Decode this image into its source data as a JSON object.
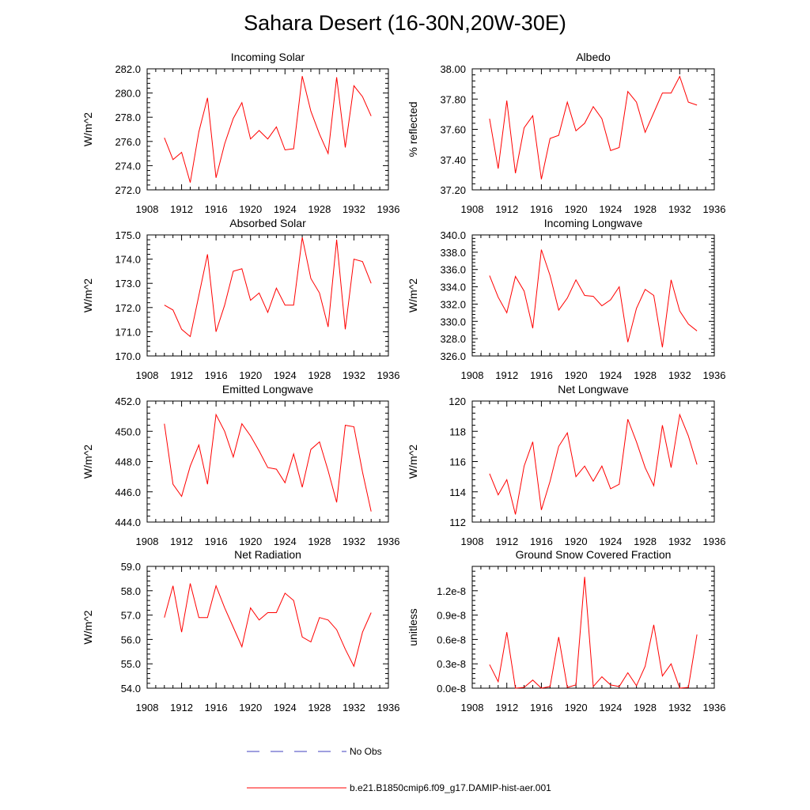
{
  "title": "Sahara Desert (16-30N,20W-30E)",
  "legend": [
    {
      "label": "No Obs",
      "color": "#3f3fbf",
      "style": "dashed"
    },
    {
      "label": "b.e21.B1850cmip6.f09_g17.DAMIP-hist-aer.001",
      "color": "#ff0000",
      "style": "solid"
    }
  ],
  "chart_data": [
    {
      "type": "line",
      "title": "Incoming Solar",
      "ylabel": "W/m^2",
      "xlim": [
        1908,
        1936
      ],
      "xticks": [
        1908,
        1912,
        1916,
        1920,
        1924,
        1928,
        1932,
        1936
      ],
      "ylim": [
        272,
        282
      ],
      "yticks": [
        "272.0",
        "274.0",
        "276.0",
        "278.0",
        "280.0",
        "282.0"
      ],
      "series": [
        {
          "color": "#ff0000",
          "x": [
            1910,
            1911,
            1912,
            1913,
            1914,
            1915,
            1916,
            1917,
            1918,
            1919,
            1920,
            1921,
            1922,
            1923,
            1924,
            1925,
            1926,
            1927,
            1928,
            1929,
            1930,
            1931,
            1932,
            1933,
            1934
          ],
          "values": [
            276.3,
            274.5,
            275.1,
            272.6,
            276.8,
            279.6,
            273.0,
            275.8,
            277.9,
            279.2,
            276.2,
            276.9,
            276.2,
            277.2,
            275.3,
            275.4,
            281.4,
            278.5,
            276.6,
            275.0,
            281.3,
            275.5,
            280.6,
            279.7,
            278.1
          ]
        }
      ]
    },
    {
      "type": "line",
      "title": "Albedo",
      "ylabel": "% reflected",
      "xlim": [
        1908,
        1936
      ],
      "xticks": [
        1908,
        1912,
        1916,
        1920,
        1924,
        1928,
        1932,
        1936
      ],
      "ylim": [
        37.2,
        38.0
      ],
      "yticks": [
        "37.20",
        "37.40",
        "37.60",
        "37.80",
        "38.00"
      ],
      "series": [
        {
          "color": "#ff0000",
          "x": [
            1910,
            1911,
            1912,
            1913,
            1914,
            1915,
            1916,
            1917,
            1918,
            1919,
            1920,
            1921,
            1922,
            1923,
            1924,
            1925,
            1926,
            1927,
            1928,
            1929,
            1930,
            1931,
            1932,
            1933,
            1934
          ],
          "values": [
            37.67,
            37.34,
            37.79,
            37.31,
            37.61,
            37.69,
            37.27,
            37.54,
            37.56,
            37.78,
            37.59,
            37.64,
            37.75,
            37.67,
            37.46,
            37.48,
            37.85,
            37.78,
            37.58,
            37.71,
            37.84,
            37.84,
            37.95,
            37.78,
            37.76
          ]
        }
      ]
    },
    {
      "type": "line",
      "title": "Absorbed Solar",
      "ylabel": "W/m^2",
      "xlim": [
        1908,
        1936
      ],
      "xticks": [
        1908,
        1912,
        1916,
        1920,
        1924,
        1928,
        1932,
        1936
      ],
      "ylim": [
        170,
        175
      ],
      "yticks": [
        "170.0",
        "171.0",
        "172.0",
        "173.0",
        "174.0",
        "175.0"
      ],
      "series": [
        {
          "color": "#ff0000",
          "x": [
            1910,
            1911,
            1912,
            1913,
            1914,
            1915,
            1916,
            1917,
            1918,
            1919,
            1920,
            1921,
            1922,
            1923,
            1924,
            1925,
            1926,
            1927,
            1928,
            1929,
            1930,
            1931,
            1932,
            1933,
            1934
          ],
          "values": [
            172.1,
            171.9,
            171.1,
            170.8,
            172.5,
            174.2,
            171.0,
            172.1,
            173.5,
            173.6,
            172.3,
            172.6,
            171.8,
            172.8,
            172.1,
            172.1,
            174.9,
            173.2,
            172.6,
            171.2,
            174.8,
            171.1,
            174.0,
            173.9,
            173.0
          ]
        }
      ]
    },
    {
      "type": "line",
      "title": "Incoming Longwave",
      "ylabel": "W/m^2",
      "xlim": [
        1908,
        1936
      ],
      "xticks": [
        1908,
        1912,
        1916,
        1920,
        1924,
        1928,
        1932,
        1936
      ],
      "ylim": [
        326,
        340
      ],
      "yticks": [
        "326.0",
        "328.0",
        "330.0",
        "332.0",
        "334.0",
        "336.0",
        "338.0",
        "340.0"
      ],
      "series": [
        {
          "color": "#ff0000",
          "x": [
            1910,
            1911,
            1912,
            1913,
            1914,
            1915,
            1916,
            1917,
            1918,
            1919,
            1920,
            1921,
            1922,
            1923,
            1924,
            1925,
            1926,
            1927,
            1928,
            1929,
            1930,
            1931,
            1932,
            1933,
            1934
          ],
          "values": [
            335.3,
            332.8,
            331.0,
            335.2,
            333.5,
            329.2,
            338.3,
            335.3,
            331.3,
            332.7,
            334.8,
            333.0,
            332.9,
            331.8,
            332.5,
            334.0,
            327.6,
            331.5,
            333.7,
            333.0,
            327.0,
            334.8,
            331.2,
            329.7,
            328.9
          ]
        }
      ]
    },
    {
      "type": "line",
      "title": "Emitted Longwave",
      "ylabel": "W/m^2",
      "xlim": [
        1908,
        1936
      ],
      "xticks": [
        1908,
        1912,
        1916,
        1920,
        1924,
        1928,
        1932,
        1936
      ],
      "ylim": [
        444,
        452
      ],
      "yticks": [
        "444.0",
        "446.0",
        "448.0",
        "450.0",
        "452.0"
      ],
      "series": [
        {
          "color": "#ff0000",
          "x": [
            1910,
            1911,
            1912,
            1913,
            1914,
            1915,
            1916,
            1917,
            1918,
            1919,
            1920,
            1921,
            1922,
            1923,
            1924,
            1925,
            1926,
            1927,
            1928,
            1929,
            1930,
            1931,
            1932,
            1933,
            1934
          ],
          "values": [
            450.5,
            446.5,
            445.7,
            447.7,
            449.1,
            446.5,
            451.1,
            450.0,
            448.3,
            450.5,
            449.7,
            448.7,
            447.6,
            447.5,
            446.6,
            448.5,
            446.3,
            448.8,
            449.3,
            447.4,
            445.3,
            450.4,
            450.3,
            447.3,
            444.7
          ]
        }
      ]
    },
    {
      "type": "line",
      "title": "Net Longwave",
      "ylabel": "W/m^2",
      "xlim": [
        1908,
        1936
      ],
      "xticks": [
        1908,
        1912,
        1916,
        1920,
        1924,
        1928,
        1932,
        1936
      ],
      "ylim": [
        112,
        120
      ],
      "yticks": [
        "112",
        "114",
        "116",
        "118",
        "120"
      ],
      "series": [
        {
          "color": "#ff0000",
          "x": [
            1910,
            1911,
            1912,
            1913,
            1914,
            1915,
            1916,
            1917,
            1918,
            1919,
            1920,
            1921,
            1922,
            1923,
            1924,
            1925,
            1926,
            1927,
            1928,
            1929,
            1930,
            1931,
            1932,
            1933,
            1934
          ],
          "values": [
            115.2,
            113.8,
            114.8,
            112.5,
            115.7,
            117.3,
            112.8,
            114.7,
            117.0,
            117.9,
            115.0,
            115.7,
            114.7,
            115.7,
            114.2,
            114.5,
            118.8,
            117.3,
            115.6,
            114.4,
            118.4,
            115.6,
            119.1,
            117.7,
            115.8
          ]
        }
      ]
    },
    {
      "type": "line",
      "title": "Net Radiation",
      "ylabel": "W/m^2",
      "xlim": [
        1908,
        1936
      ],
      "xticks": [
        1908,
        1912,
        1916,
        1920,
        1924,
        1928,
        1932,
        1936
      ],
      "ylim": [
        54,
        59
      ],
      "yticks": [
        "54.0",
        "55.0",
        "56.0",
        "57.0",
        "58.0",
        "59.0"
      ],
      "series": [
        {
          "color": "#ff0000",
          "x": [
            1910,
            1911,
            1912,
            1913,
            1914,
            1915,
            1916,
            1917,
            1918,
            1919,
            1920,
            1921,
            1922,
            1923,
            1924,
            1925,
            1926,
            1927,
            1928,
            1929,
            1930,
            1931,
            1932,
            1933,
            1934
          ],
          "values": [
            56.9,
            58.2,
            56.3,
            58.3,
            56.9,
            56.9,
            58.2,
            57.3,
            56.5,
            55.7,
            57.3,
            56.8,
            57.1,
            57.1,
            57.9,
            57.6,
            56.1,
            55.9,
            56.9,
            56.8,
            56.4,
            55.6,
            54.9,
            56.3,
            57.1
          ]
        }
      ]
    },
    {
      "type": "line",
      "title": "Ground Snow Covered Fraction",
      "ylabel": "unitless",
      "xlim": [
        1908,
        1936
      ],
      "xticks": [
        1908,
        1912,
        1916,
        1920,
        1924,
        1928,
        1932,
        1936
      ],
      "ylim": [
        0,
        1.5e-08
      ],
      "yticks": [
        "0.0e-8",
        "0.3e-8",
        "0.6e-8",
        "0.9e-8",
        "1.2e-8"
      ],
      "ytick_values": [
        0,
        3e-09,
        6e-09,
        9e-09,
        1.2e-08
      ],
      "series": [
        {
          "color": "#ff0000",
          "x": [
            1910,
            1911,
            1912,
            1913,
            1914,
            1915,
            1916,
            1917,
            1918,
            1919,
            1920,
            1921,
            1922,
            1923,
            1924,
            1925,
            1926,
            1927,
            1928,
            1929,
            1930,
            1931,
            1932,
            1933,
            1934
          ],
          "values": [
            2.9e-09,
            8e-10,
            6.9e-09,
            0.0,
            1e-10,
            1e-09,
            0.0,
            2e-10,
            6.3e-09,
            1e-10,
            4e-10,
            1.37e-08,
            2e-10,
            1.4e-09,
            4e-10,
            2e-10,
            1.9e-09,
            3e-10,
            2.7e-09,
            7.8e-09,
            1.5e-09,
            3e-09,
            0.0,
            1e-10,
            6.6e-09
          ]
        }
      ]
    }
  ]
}
